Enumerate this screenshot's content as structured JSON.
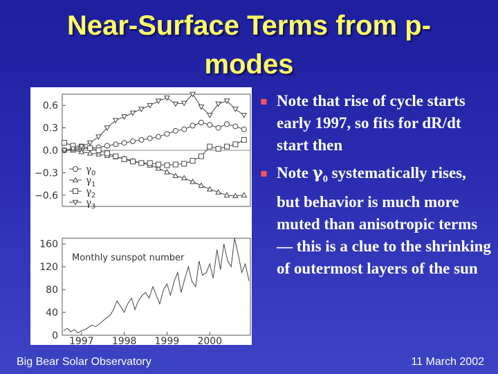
{
  "slide": {
    "title_line1": "Near-Surface Terms from p-",
    "title_line2": "modes",
    "bullets": [
      {
        "text": "Note that rise of cycle starts early 1997, so fits for dR/dt start then"
      },
      {
        "prefix": "Note ",
        "gamma": "γ",
        "sub": "0",
        "suffix": " systematically rises, but behavior is much more muted than anisotropic terms — this is a clue to the shrinking of outermost layers of the sun"
      }
    ],
    "footer_left": "Big Bear Solar Observatory",
    "footer_right": "11 March  2002"
  },
  "colors": {
    "title": "#ffff66",
    "bullet_marker": "#ff5555"
  },
  "chart_data": [
    {
      "type": "line",
      "yticks": [
        "0.6",
        "0.3",
        "0.0",
        "−0.3",
        "−0.6"
      ],
      "ylim": [
        -0.75,
        0.75
      ],
      "legend": [
        "γ",
        "γ",
        "γ",
        "γ"
      ],
      "legend_subs": [
        "0",
        "1",
        "2",
        "3"
      ],
      "legend_placement": "bottom-left",
      "series_markers": [
        "circle",
        "triangle-up",
        "square",
        "triangle-down"
      ],
      "x": [
        1996.6,
        1996.8,
        1997.0,
        1997.2,
        1997.4,
        1997.6,
        1997.8,
        1998.0,
        1998.2,
        1998.4,
        1998.6,
        1998.8,
        1999.0,
        1999.2,
        1999.4,
        1999.6,
        1999.8,
        2000.0,
        2000.2,
        2000.4,
        2000.6,
        2000.8
      ],
      "series": [
        {
          "values": [
            0.0,
            0.01,
            0.02,
            0.03,
            0.04,
            0.06,
            0.08,
            0.1,
            0.12,
            0.14,
            0.16,
            0.18,
            0.22,
            0.26,
            0.28,
            0.33,
            0.37,
            0.34,
            0.3,
            0.35,
            0.32,
            0.28
          ]
        },
        {
          "values": [
            0.0,
            0.0,
            -0.02,
            -0.04,
            -0.05,
            -0.07,
            -0.09,
            -0.11,
            -0.14,
            -0.17,
            -0.2,
            -0.24,
            -0.29,
            -0.34,
            -0.37,
            -0.42,
            -0.47,
            -0.52,
            -0.56,
            -0.6,
            -0.61,
            -0.6
          ]
        },
        {
          "values": [
            0.1,
            0.06,
            0.05,
            0.03,
            0.0,
            -0.04,
            -0.08,
            -0.12,
            -0.15,
            -0.17,
            -0.17,
            -0.19,
            -0.2,
            -0.19,
            -0.18,
            -0.14,
            -0.08,
            0.05,
            0.02,
            0.05,
            0.08,
            0.14
          ]
        },
        {
          "values": [
            0.0,
            0.02,
            0.05,
            0.1,
            0.18,
            0.3,
            0.4,
            0.45,
            0.5,
            0.55,
            0.6,
            0.66,
            0.7,
            0.62,
            0.63,
            0.75,
            0.58,
            0.47,
            0.62,
            0.66,
            0.55,
            0.47
          ]
        }
      ]
    },
    {
      "type": "line",
      "title": "Monthly sunspot number",
      "yticks": [
        "160",
        "120",
        "80",
        "40",
        "0"
      ],
      "ylim": [
        0,
        170
      ],
      "xticks": [
        "1997",
        "1998",
        "1999",
        "2000"
      ],
      "xtick_values": [
        1997,
        1998,
        1999,
        2000
      ],
      "xlim": [
        1996.55,
        2000.95
      ],
      "x": [
        1996.58,
        1996.67,
        1996.75,
        1996.83,
        1996.92,
        1997.0,
        1997.08,
        1997.17,
        1997.25,
        1997.33,
        1997.42,
        1997.5,
        1997.58,
        1997.67,
        1997.75,
        1997.83,
        1997.92,
        1998.0,
        1998.08,
        1998.17,
        1998.25,
        1998.33,
        1998.42,
        1998.5,
        1998.58,
        1998.67,
        1998.75,
        1998.83,
        1998.92,
        1999.0,
        1999.08,
        1999.17,
        1999.25,
        1999.33,
        1999.42,
        1999.5,
        1999.58,
        1999.67,
        1999.75,
        1999.83,
        1999.92,
        2000.0,
        2000.08,
        2000.17,
        2000.25,
        2000.33,
        2000.42,
        2000.5,
        2000.58,
        2000.67,
        2000.75,
        2000.83,
        2000.92
      ],
      "values": [
        8,
        12,
        6,
        10,
        4,
        8,
        10,
        14,
        18,
        15,
        20,
        25,
        30,
        35,
        45,
        60,
        50,
        40,
        55,
        65,
        45,
        60,
        70,
        75,
        65,
        85,
        70,
        55,
        80,
        90,
        70,
        95,
        110,
        75,
        100,
        120,
        95,
        85,
        130,
        105,
        110,
        125,
        100,
        150,
        115,
        160,
        130,
        120,
        170,
        140,
        110,
        125,
        95
      ]
    }
  ]
}
